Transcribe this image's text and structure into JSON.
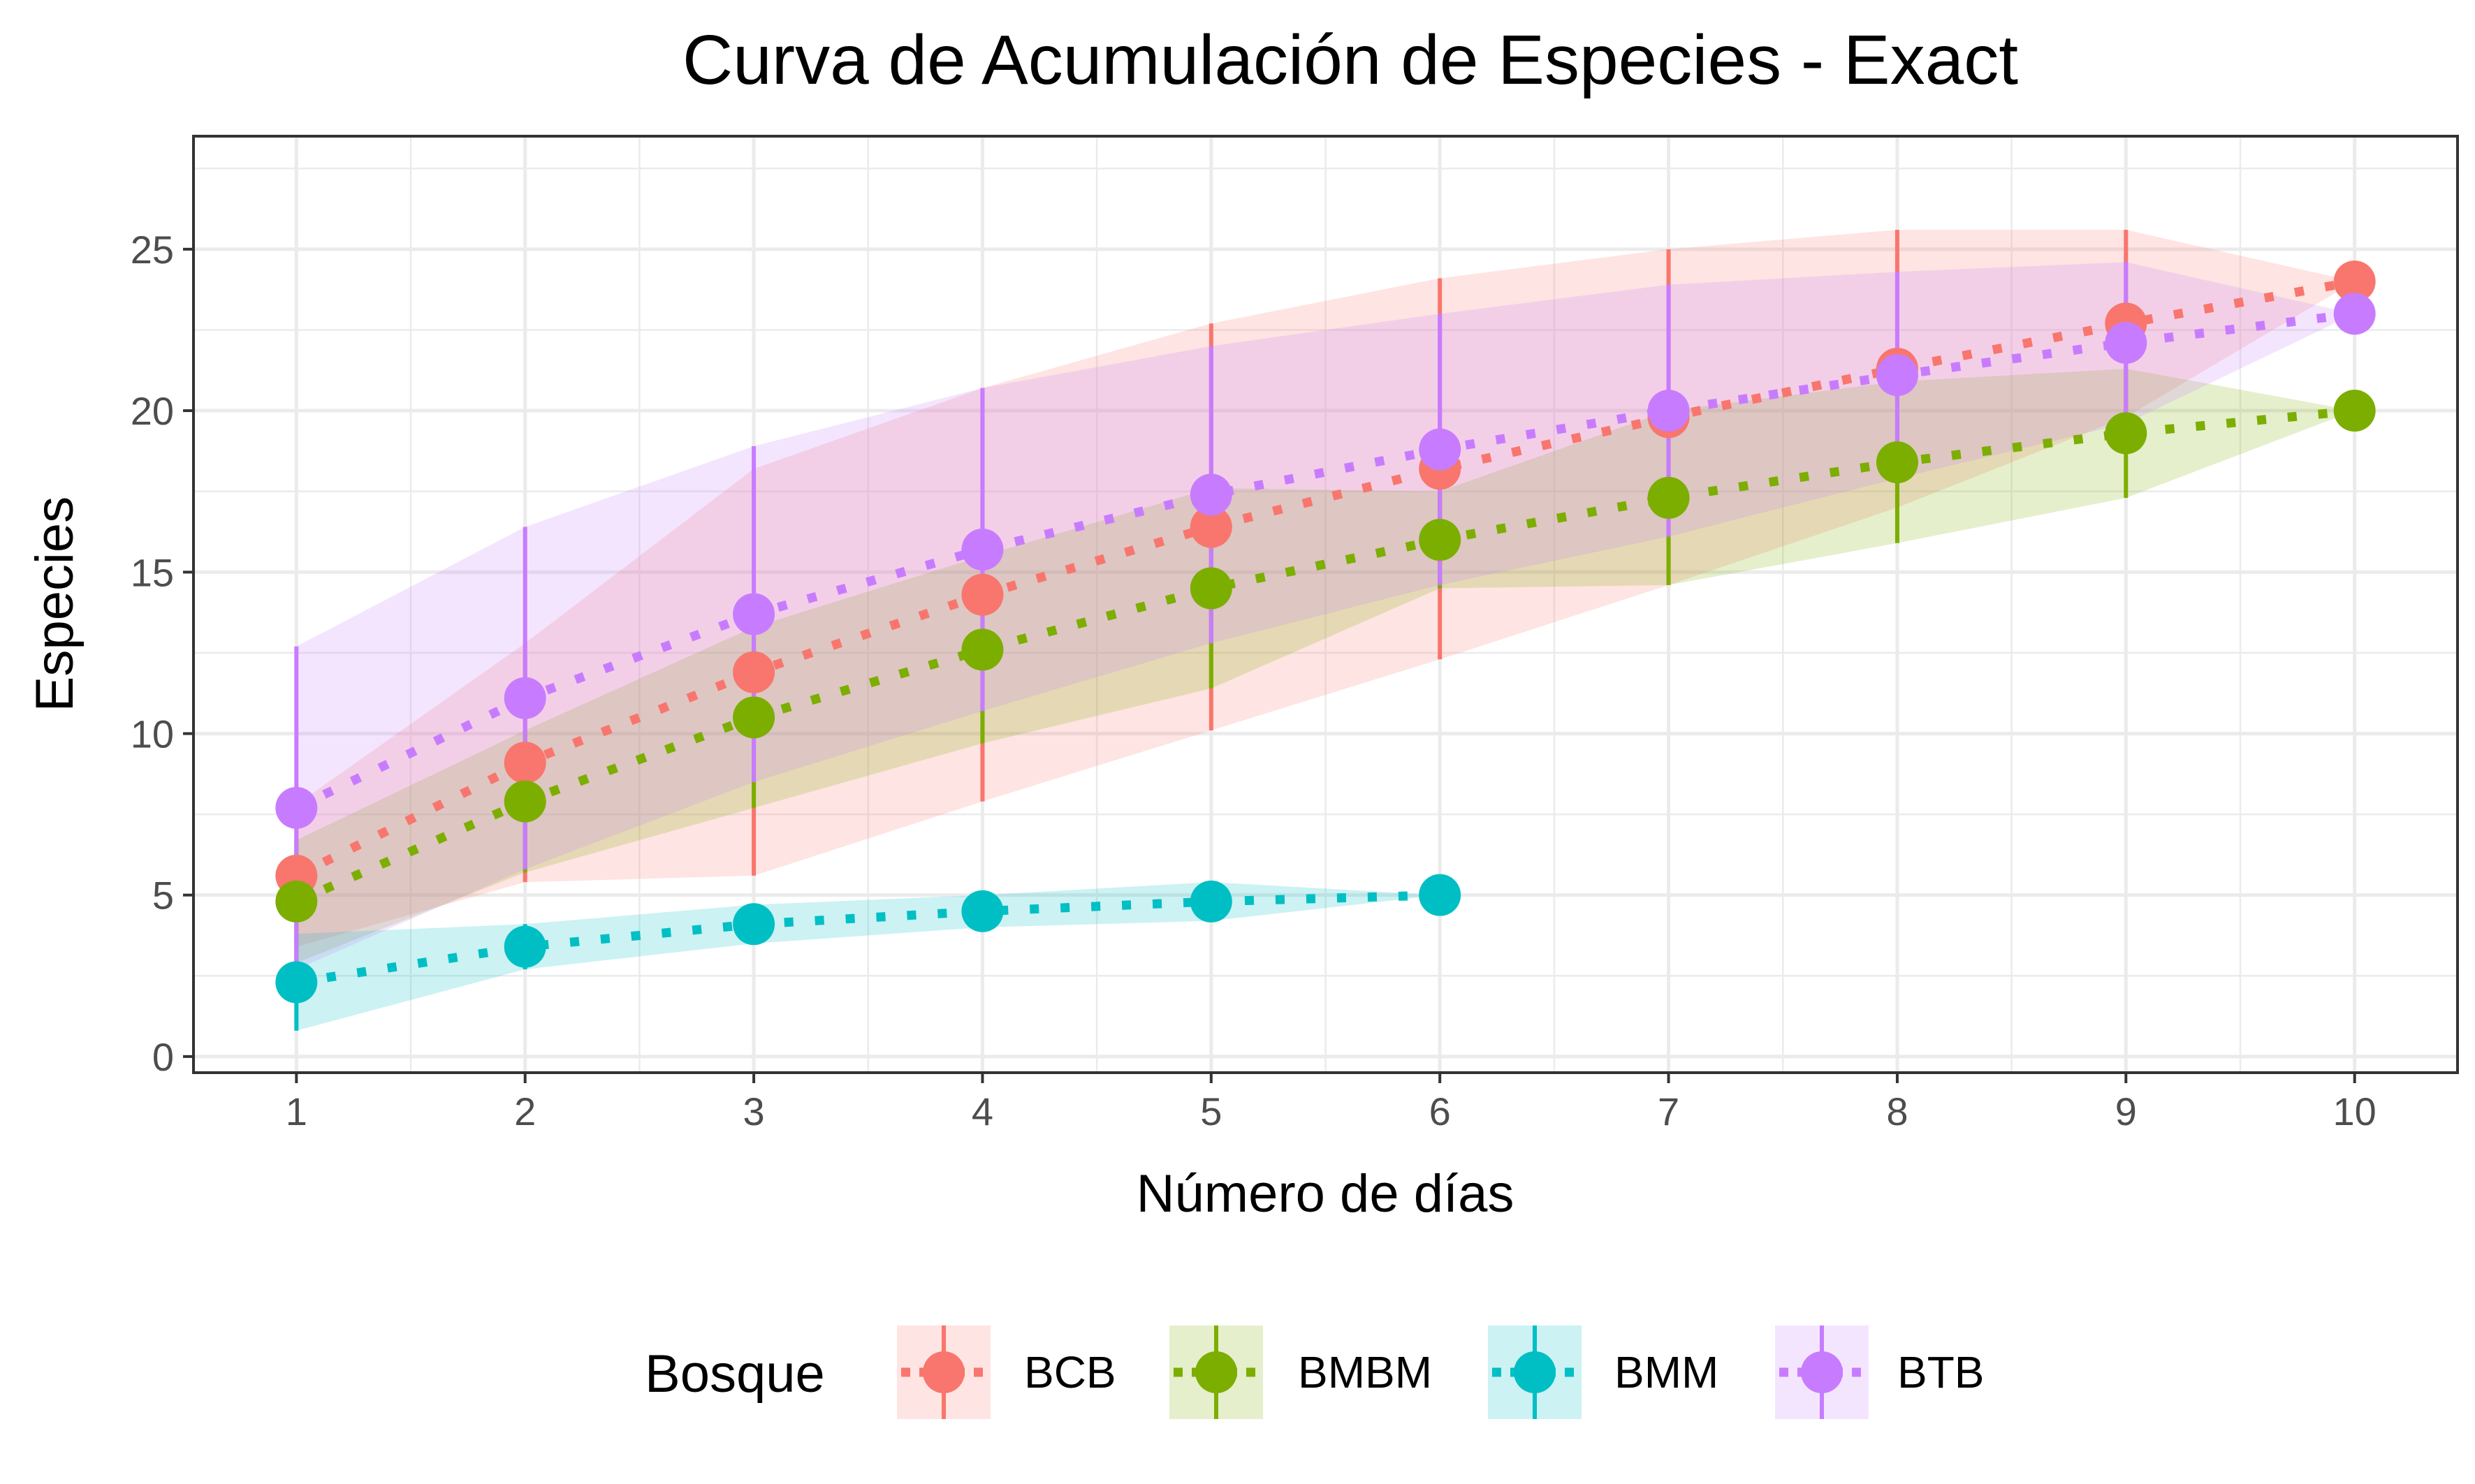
{
  "chart_data": {
    "type": "line",
    "title": "Curva de Acumulación de Especies - Exact",
    "xlabel": "Número de días",
    "ylabel": "Especies",
    "xlim": [
      0.55,
      10.45
    ],
    "ylim": [
      -0.5,
      28.5
    ],
    "x_ticks": [
      1,
      2,
      3,
      4,
      5,
      6,
      7,
      8,
      9,
      10
    ],
    "y_ticks": [
      0,
      5,
      10,
      15,
      20,
      25
    ],
    "grid": true,
    "legend": {
      "title": "Bosque",
      "position": "bottom"
    },
    "series": [
      {
        "name": "BCB",
        "color": "#F8766D",
        "x": [
          1,
          2,
          3,
          4,
          5,
          6,
          7,
          8,
          9,
          10
        ],
        "y": [
          5.6,
          9.1,
          11.9,
          14.3,
          16.4,
          18.2,
          19.8,
          21.3,
          22.7,
          24.0
        ],
        "lower": [
          3.4,
          5.4,
          5.6,
          7.9,
          10.1,
          12.3,
          14.6,
          17.0,
          19.8,
          24.0
        ],
        "upper": [
          7.8,
          12.8,
          18.2,
          20.7,
          22.7,
          24.1,
          25.0,
          25.6,
          25.6,
          24.0
        ]
      },
      {
        "name": "BMBM",
        "color": "#7CAE00",
        "x": [
          1,
          2,
          3,
          4,
          5,
          6,
          7,
          8,
          9,
          10
        ],
        "y": [
          4.8,
          7.9,
          10.5,
          12.6,
          14.5,
          16.0,
          17.3,
          18.4,
          19.3,
          20.0
        ],
        "lower": [
          2.9,
          5.7,
          7.7,
          9.7,
          11.4,
          14.5,
          14.6,
          15.9,
          17.3,
          20.0
        ],
        "upper": [
          6.7,
          10.1,
          13.3,
          15.5,
          17.6,
          17.5,
          20.0,
          20.9,
          21.3,
          20.0
        ]
      },
      {
        "name": "BMM",
        "color": "#00BFC4",
        "x": [
          1,
          2,
          3,
          4,
          5,
          6
        ],
        "y": [
          2.3,
          3.4,
          4.1,
          4.5,
          4.8,
          5.0
        ],
        "lower": [
          0.8,
          2.7,
          3.5,
          4.0,
          4.2,
          5.0
        ],
        "upper": [
          3.8,
          4.1,
          4.7,
          5.0,
          5.4,
          5.0
        ]
      },
      {
        "name": "BTB",
        "color": "#C77CFF",
        "x": [
          1,
          2,
          3,
          4,
          5,
          6,
          7,
          8,
          9,
          10
        ],
        "y": [
          7.7,
          11.1,
          13.7,
          15.7,
          17.4,
          18.8,
          20.0,
          21.1,
          22.1,
          23.0
        ],
        "lower": [
          2.7,
          5.8,
          8.5,
          10.7,
          12.8,
          14.6,
          16.1,
          17.9,
          19.6,
          23.0
        ],
        "upper": [
          12.7,
          16.4,
          18.9,
          20.7,
          22.0,
          23.0,
          23.9,
          24.3,
          24.6,
          23.0
        ]
      }
    ]
  }
}
